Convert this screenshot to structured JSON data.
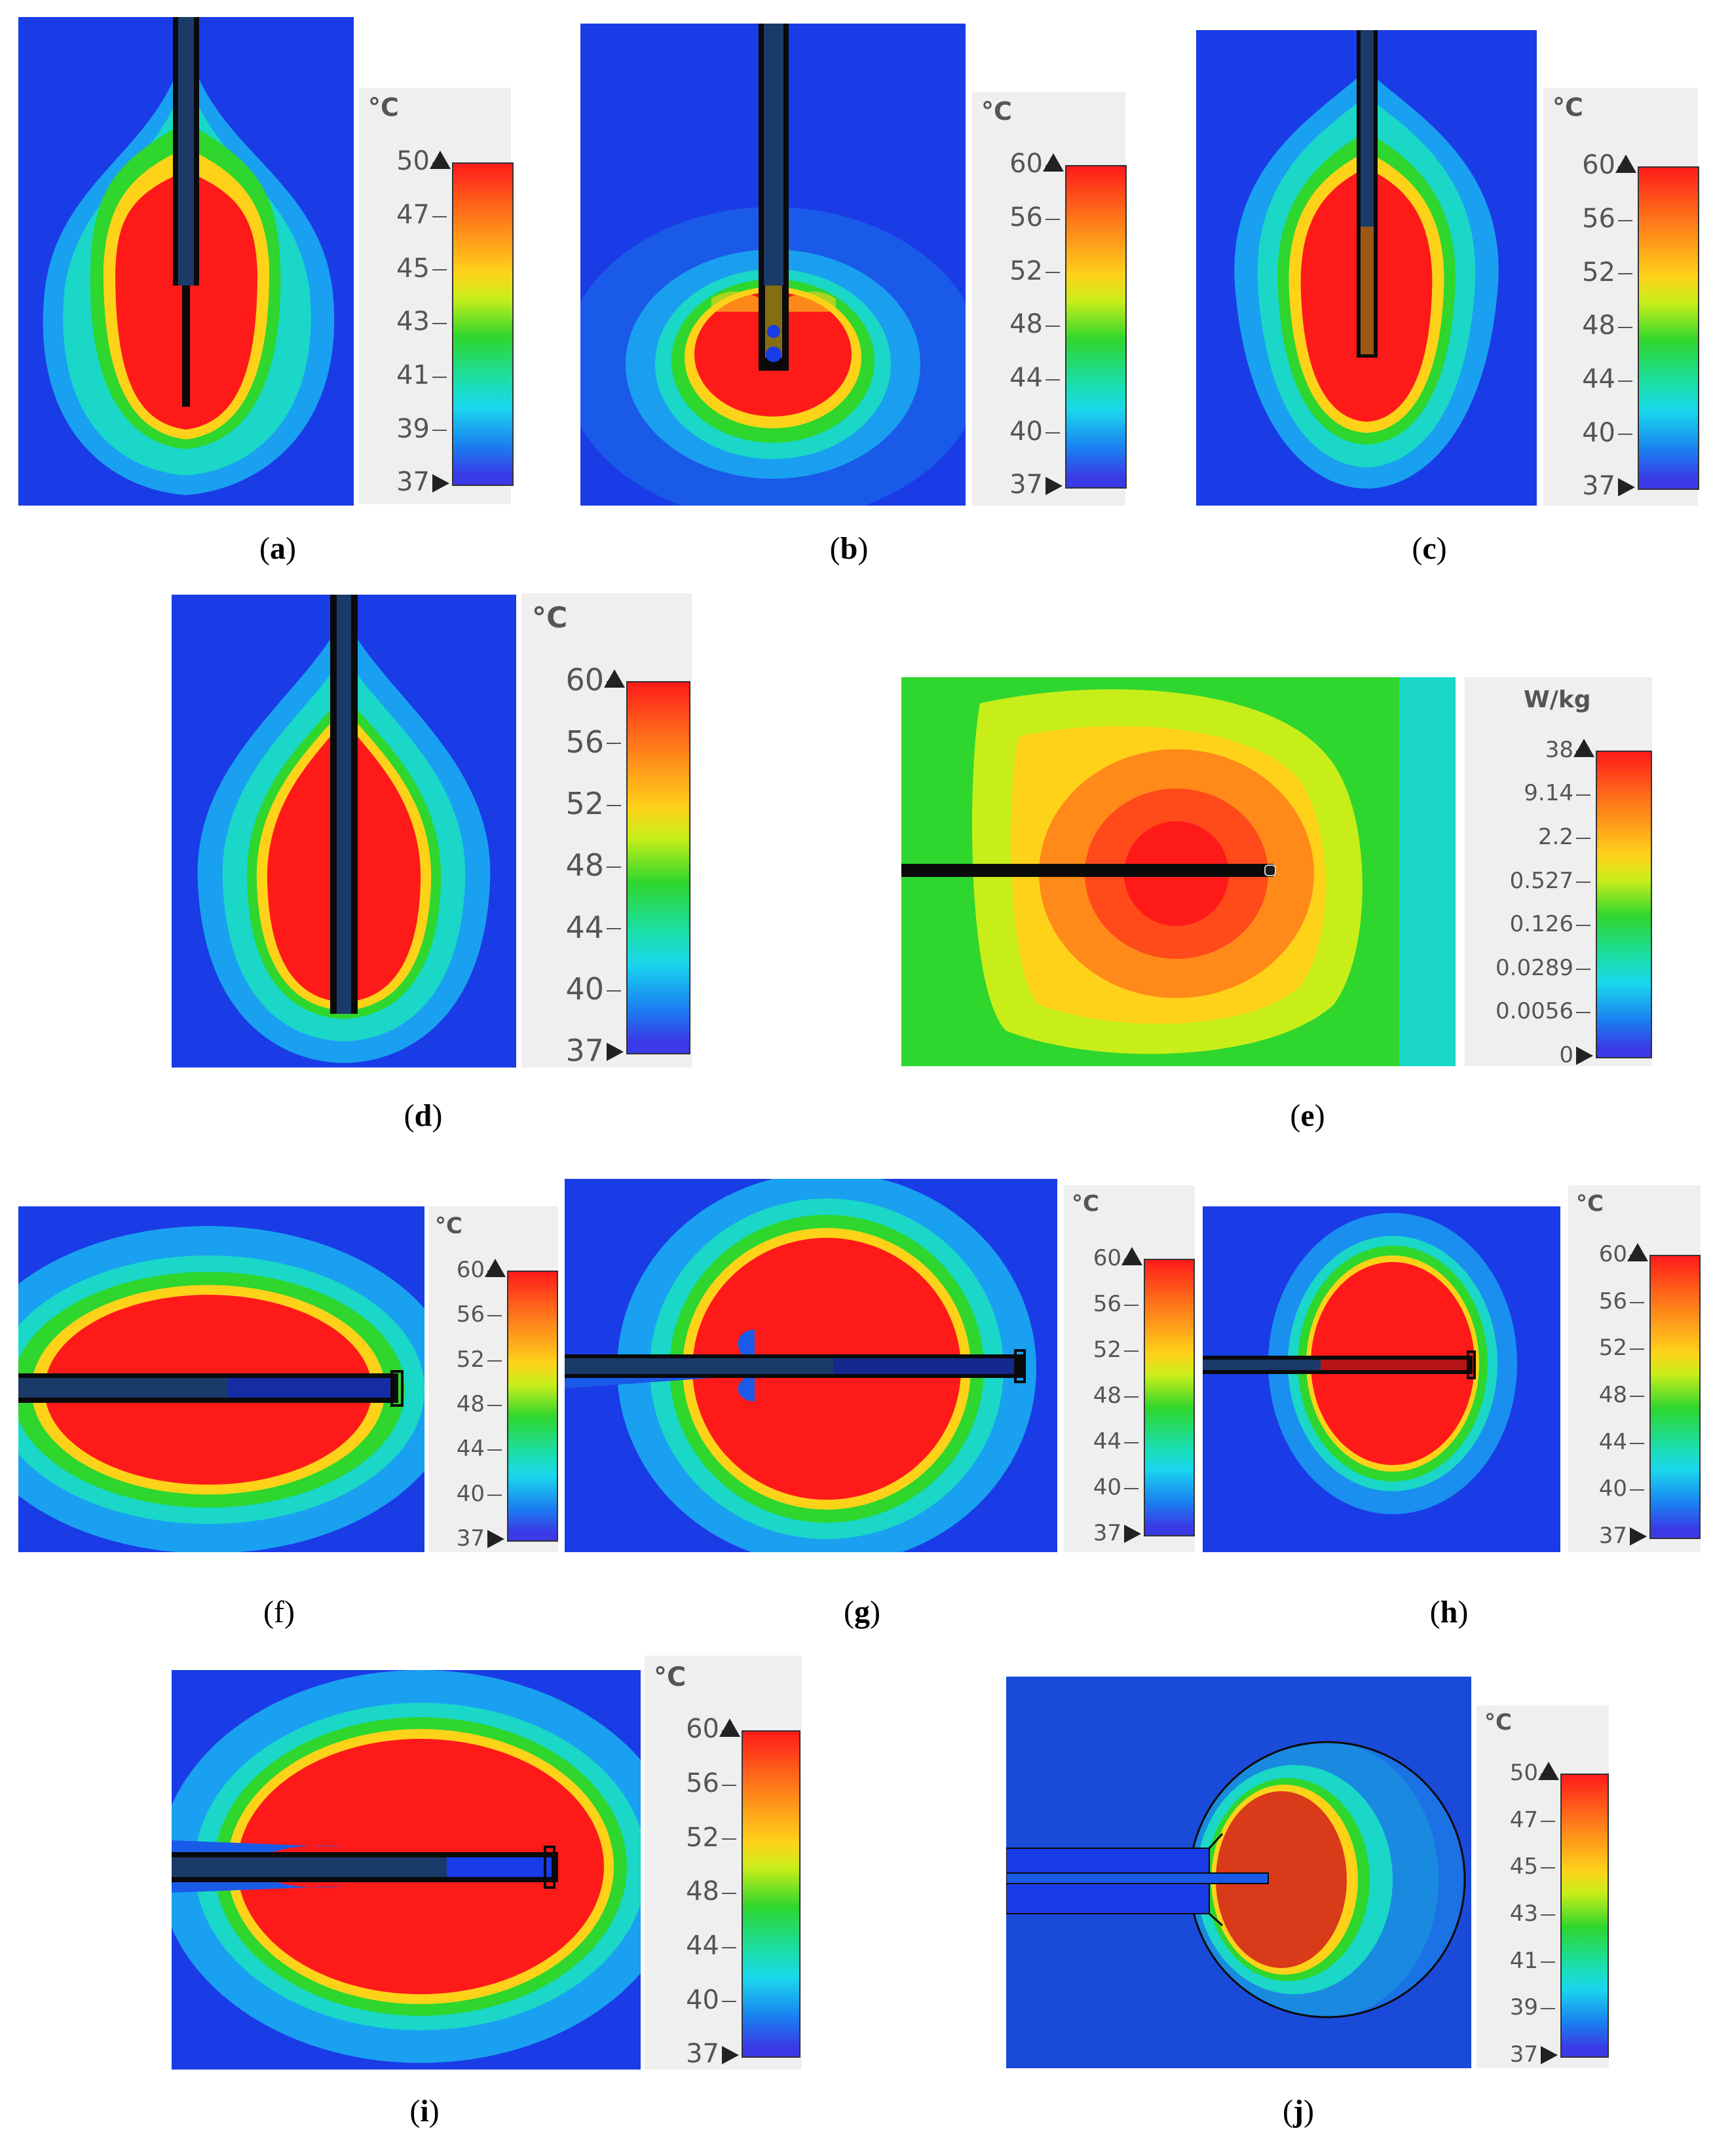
{
  "panels": [
    {
      "id": "a",
      "caption_letter": "a",
      "caption_bold": true,
      "unit": "°C",
      "ticks": [
        "50",
        "47",
        "45",
        "43",
        "41",
        "39",
        "37"
      ]
    },
    {
      "id": "b",
      "caption_letter": "b",
      "caption_bold": true,
      "unit": "°C",
      "ticks": [
        "60",
        "56",
        "52",
        "48",
        "44",
        "40",
        "37"
      ]
    },
    {
      "id": "c",
      "caption_letter": "c",
      "caption_bold": true,
      "unit": "°C",
      "ticks": [
        "60",
        "56",
        "52",
        "48",
        "44",
        "40",
        "37"
      ]
    },
    {
      "id": "d",
      "caption_letter": "d",
      "caption_bold": true,
      "unit": "°C",
      "ticks": [
        "60",
        "56",
        "52",
        "48",
        "44",
        "40",
        "37"
      ]
    },
    {
      "id": "e",
      "caption_letter": "e",
      "caption_bold": true,
      "unit": "W/kg",
      "ticks": [
        "38",
        "9.14",
        "2.2",
        "0.527",
        "0.126",
        "0.0289",
        "0.0056",
        "0"
      ]
    },
    {
      "id": "f",
      "caption_letter": "f",
      "caption_bold": false,
      "unit": "°C",
      "ticks": [
        "60",
        "56",
        "52",
        "48",
        "44",
        "40",
        "37"
      ]
    },
    {
      "id": "g",
      "caption_letter": "g",
      "caption_bold": true,
      "unit": "°C",
      "ticks": [
        "60",
        "56",
        "52",
        "48",
        "44",
        "40",
        "37"
      ]
    },
    {
      "id": "h",
      "caption_letter": "h",
      "caption_bold": true,
      "unit": "°C",
      "ticks": [
        "60",
        "56",
        "52",
        "48",
        "44",
        "40",
        "37"
      ]
    },
    {
      "id": "i",
      "caption_letter": "i",
      "caption_bold": true,
      "unit": "°C",
      "ticks": [
        "60",
        "56",
        "52",
        "48",
        "44",
        "40",
        "37"
      ]
    },
    {
      "id": "j",
      "caption_letter": "j",
      "caption_bold": true,
      "unit": "°C",
      "ticks": [
        "50",
        "47",
        "45",
        "43",
        "41",
        "39",
        "37"
      ]
    }
  ]
}
